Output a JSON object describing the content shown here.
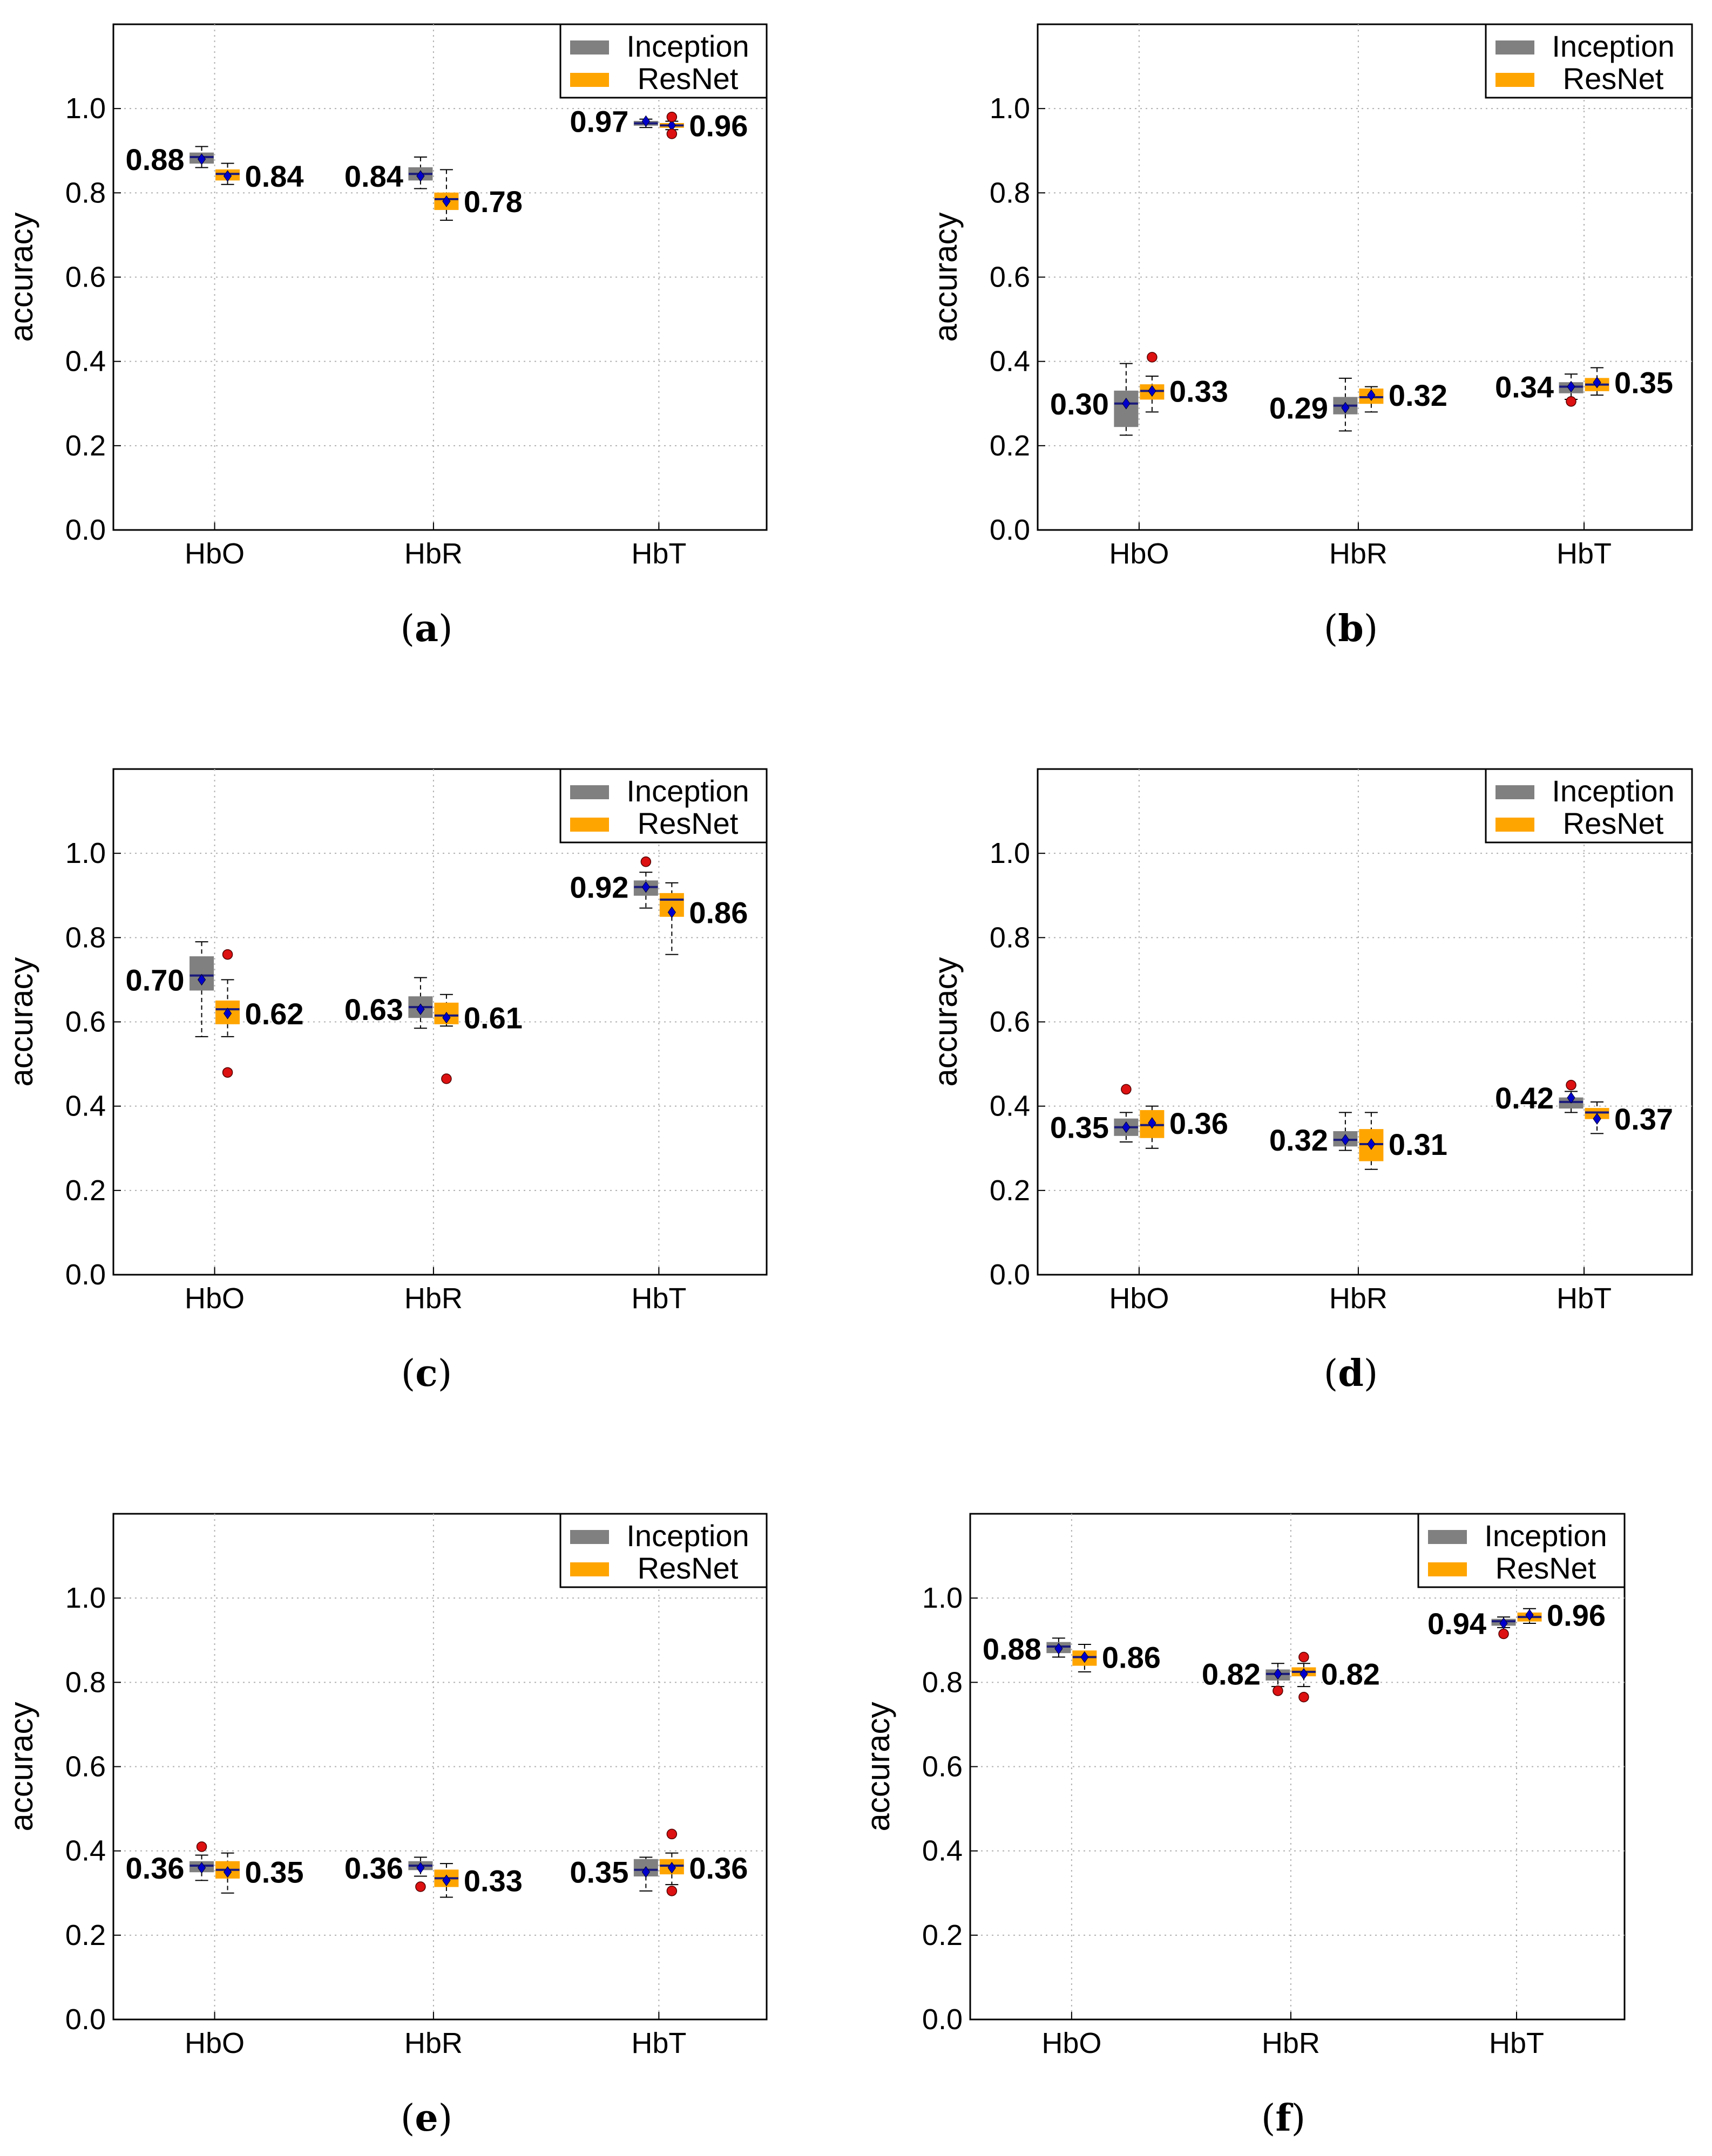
{
  "common": {
    "ylabel": "accuracy",
    "categories": [
      "HbO",
      "HbR",
      "HbT"
    ],
    "yticks": [
      "0.0",
      "0.2",
      "0.4",
      "0.6",
      "0.8",
      "1.0"
    ],
    "ylim": [
      0,
      1.2
    ],
    "legend": [
      "Inception",
      "ResNet"
    ],
    "colors": {
      "Inception": "#808080",
      "ResNet": "#FFA500",
      "median": "#1a1a7a",
      "mean": "#0000cc",
      "outlier": "#dd1111"
    }
  },
  "chart_data": [
    {
      "type": "box",
      "label": "a",
      "grid": true,
      "legend_loc": "top-right",
      "series": [
        {
          "name": "Inception",
          "boxes": [
            {
              "cat": "HbO",
              "wlo": 0.86,
              "q1": 0.87,
              "med": 0.885,
              "q3": 0.895,
              "whi": 0.91,
              "mean": 0.88,
              "label": "0.88",
              "out": []
            },
            {
              "cat": "HbR",
              "wlo": 0.81,
              "q1": 0.83,
              "med": 0.845,
              "q3": 0.86,
              "whi": 0.885,
              "mean": 0.84,
              "label": "0.84",
              "out": []
            },
            {
              "cat": "HbT",
              "wlo": 0.955,
              "q1": 0.96,
              "med": 0.965,
              "q3": 0.97,
              "whi": 0.975,
              "mean": 0.97,
              "label": "0.97",
              "out": []
            }
          ]
        },
        {
          "name": "ResNet",
          "boxes": [
            {
              "cat": "HbO",
              "wlo": 0.82,
              "q1": 0.83,
              "med": 0.845,
              "q3": 0.855,
              "whi": 0.87,
              "mean": 0.84,
              "label": "0.84",
              "out": []
            },
            {
              "cat": "HbR",
              "wlo": 0.735,
              "q1": 0.76,
              "med": 0.785,
              "q3": 0.8,
              "whi": 0.855,
              "mean": 0.78,
              "label": "0.78",
              "out": []
            },
            {
              "cat": "HbT",
              "wlo": 0.95,
              "q1": 0.955,
              "med": 0.96,
              "q3": 0.965,
              "whi": 0.97,
              "mean": 0.96,
              "label": "0.96",
              "out": [
                0.98,
                0.94
              ]
            }
          ]
        }
      ]
    },
    {
      "type": "box",
      "label": "b",
      "grid": true,
      "legend_loc": "top-right",
      "series": [
        {
          "name": "Inception",
          "boxes": [
            {
              "cat": "HbO",
              "wlo": 0.225,
              "q1": 0.245,
              "med": 0.3,
              "q3": 0.33,
              "whi": 0.395,
              "mean": 0.3,
              "label": "0.30",
              "out": []
            },
            {
              "cat": "HbR",
              "wlo": 0.235,
              "q1": 0.275,
              "med": 0.295,
              "q3": 0.315,
              "whi": 0.36,
              "mean": 0.29,
              "label": "0.29",
              "out": []
            },
            {
              "cat": "HbT",
              "wlo": 0.31,
              "q1": 0.325,
              "med": 0.34,
              "q3": 0.35,
              "whi": 0.37,
              "mean": 0.34,
              "label": "0.34",
              "out": [
                0.305
              ]
            }
          ]
        },
        {
          "name": "ResNet",
          "boxes": [
            {
              "cat": "HbO",
              "wlo": 0.28,
              "q1": 0.31,
              "med": 0.33,
              "q3": 0.345,
              "whi": 0.365,
              "mean": 0.33,
              "label": "0.33",
              "out": [
                0.41
              ]
            },
            {
              "cat": "HbR",
              "wlo": 0.28,
              "q1": 0.3,
              "med": 0.315,
              "q3": 0.335,
              "whi": 0.34,
              "mean": 0.32,
              "label": "0.32",
              "out": []
            },
            {
              "cat": "HbT",
              "wlo": 0.32,
              "q1": 0.33,
              "med": 0.345,
              "q3": 0.36,
              "whi": 0.385,
              "mean": 0.35,
              "label": "0.35",
              "out": []
            }
          ]
        }
      ]
    },
    {
      "type": "box",
      "label": "c",
      "grid": true,
      "legend_loc": "top-right",
      "series": [
        {
          "name": "Inception",
          "boxes": [
            {
              "cat": "HbO",
              "wlo": 0.565,
              "q1": 0.675,
              "med": 0.71,
              "q3": 0.755,
              "whi": 0.79,
              "mean": 0.7,
              "label": "0.70",
              "out": []
            },
            {
              "cat": "HbR",
              "wlo": 0.585,
              "q1": 0.61,
              "med": 0.635,
              "q3": 0.66,
              "whi": 0.705,
              "mean": 0.63,
              "label": "0.63",
              "out": []
            },
            {
              "cat": "HbT",
              "wlo": 0.87,
              "q1": 0.9,
              "med": 0.92,
              "q3": 0.935,
              "whi": 0.955,
              "mean": 0.92,
              "label": "0.92",
              "out": [
                0.98
              ]
            }
          ]
        },
        {
          "name": "ResNet",
          "boxes": [
            {
              "cat": "HbO",
              "wlo": 0.565,
              "q1": 0.595,
              "med": 0.63,
              "q3": 0.65,
              "whi": 0.7,
              "mean": 0.62,
              "label": "0.62",
              "out": [
                0.76,
                0.48
              ]
            },
            {
              "cat": "HbR",
              "wlo": 0.59,
              "q1": 0.595,
              "med": 0.615,
              "q3": 0.645,
              "whi": 0.665,
              "mean": 0.61,
              "label": "0.61",
              "out": [
                0.465
              ]
            },
            {
              "cat": "HbT",
              "wlo": 0.76,
              "q1": 0.85,
              "med": 0.89,
              "q3": 0.905,
              "whi": 0.93,
              "mean": 0.86,
              "label": "0.86",
              "out": []
            }
          ]
        }
      ]
    },
    {
      "type": "box",
      "label": "d",
      "grid": true,
      "legend_loc": "top-right",
      "series": [
        {
          "name": "Inception",
          "boxes": [
            {
              "cat": "HbO",
              "wlo": 0.315,
              "q1": 0.33,
              "med": 0.35,
              "q3": 0.37,
              "whi": 0.385,
              "mean": 0.35,
              "label": "0.35",
              "out": [
                0.44
              ]
            },
            {
              "cat": "HbR",
              "wlo": 0.295,
              "q1": 0.305,
              "med": 0.32,
              "q3": 0.34,
              "whi": 0.385,
              "mean": 0.32,
              "label": "0.32",
              "out": []
            },
            {
              "cat": "HbT",
              "wlo": 0.385,
              "q1": 0.395,
              "med": 0.41,
              "q3": 0.42,
              "whi": 0.435,
              "mean": 0.42,
              "label": "0.42",
              "out": [
                0.45
              ]
            }
          ]
        },
        {
          "name": "ResNet",
          "boxes": [
            {
              "cat": "HbO",
              "wlo": 0.3,
              "q1": 0.325,
              "med": 0.355,
              "q3": 0.39,
              "whi": 0.4,
              "mean": 0.36,
              "label": "0.36",
              "out": []
            },
            {
              "cat": "HbR",
              "wlo": 0.25,
              "q1": 0.27,
              "med": 0.31,
              "q3": 0.345,
              "whi": 0.385,
              "mean": 0.31,
              "label": "0.31",
              "out": []
            },
            {
              "cat": "HbT",
              "wlo": 0.335,
              "q1": 0.37,
              "med": 0.385,
              "q3": 0.395,
              "whi": 0.41,
              "mean": 0.37,
              "label": "0.37",
              "out": []
            }
          ]
        }
      ]
    },
    {
      "type": "box",
      "label": "e",
      "grid": true,
      "legend_loc": "top-right",
      "series": [
        {
          "name": "Inception",
          "boxes": [
            {
              "cat": "HbO",
              "wlo": 0.33,
              "q1": 0.35,
              "med": 0.365,
              "q3": 0.375,
              "whi": 0.39,
              "mean": 0.36,
              "label": "0.36",
              "out": [
                0.41
              ]
            },
            {
              "cat": "HbR",
              "wlo": 0.34,
              "q1": 0.355,
              "med": 0.365,
              "q3": 0.375,
              "whi": 0.385,
              "mean": 0.36,
              "label": "0.36",
              "out": [
                0.315
              ]
            },
            {
              "cat": "HbT",
              "wlo": 0.305,
              "q1": 0.34,
              "med": 0.355,
              "q3": 0.38,
              "whi": 0.385,
              "mean": 0.35,
              "label": "0.35",
              "out": []
            }
          ]
        },
        {
          "name": "ResNet",
          "boxes": [
            {
              "cat": "HbO",
              "wlo": 0.3,
              "q1": 0.335,
              "med": 0.355,
              "q3": 0.375,
              "whi": 0.395,
              "mean": 0.35,
              "label": "0.35",
              "out": []
            },
            {
              "cat": "HbR",
              "wlo": 0.29,
              "q1": 0.315,
              "med": 0.335,
              "q3": 0.355,
              "whi": 0.37,
              "mean": 0.33,
              "label": "0.33",
              "out": []
            },
            {
              "cat": "HbT",
              "wlo": 0.32,
              "q1": 0.345,
              "med": 0.365,
              "q3": 0.38,
              "whi": 0.395,
              "mean": 0.36,
              "label": "0.36",
              "out": [
                0.44,
                0.305
              ]
            }
          ]
        }
      ]
    },
    {
      "type": "box",
      "label": "f",
      "grid": true,
      "legend_loc": "top-right",
      "series": [
        {
          "name": "Inception",
          "boxes": [
            {
              "cat": "HbO",
              "wlo": 0.86,
              "q1": 0.87,
              "med": 0.885,
              "q3": 0.895,
              "whi": 0.905,
              "mean": 0.88,
              "label": "0.88",
              "out": []
            },
            {
              "cat": "HbR",
              "wlo": 0.79,
              "q1": 0.805,
              "med": 0.82,
              "q3": 0.83,
              "whi": 0.845,
              "mean": 0.82,
              "label": "0.82",
              "out": [
                0.78
              ]
            },
            {
              "cat": "HbT",
              "wlo": 0.93,
              "q1": 0.935,
              "med": 0.945,
              "q3": 0.95,
              "whi": 0.955,
              "mean": 0.94,
              "label": "0.94",
              "out": [
                0.915
              ]
            }
          ]
        },
        {
          "name": "ResNet",
          "boxes": [
            {
              "cat": "HbO",
              "wlo": 0.825,
              "q1": 0.84,
              "med": 0.86,
              "q3": 0.875,
              "whi": 0.89,
              "mean": 0.86,
              "label": "0.86",
              "out": []
            },
            {
              "cat": "HbR",
              "wlo": 0.79,
              "q1": 0.815,
              "med": 0.825,
              "q3": 0.835,
              "whi": 0.845,
              "mean": 0.82,
              "label": "0.82",
              "out": [
                0.86,
                0.765
              ]
            },
            {
              "cat": "HbT",
              "wlo": 0.94,
              "q1": 0.945,
              "med": 0.955,
              "q3": 0.965,
              "whi": 0.975,
              "mean": 0.96,
              "label": "0.96",
              "out": []
            }
          ]
        }
      ]
    }
  ]
}
